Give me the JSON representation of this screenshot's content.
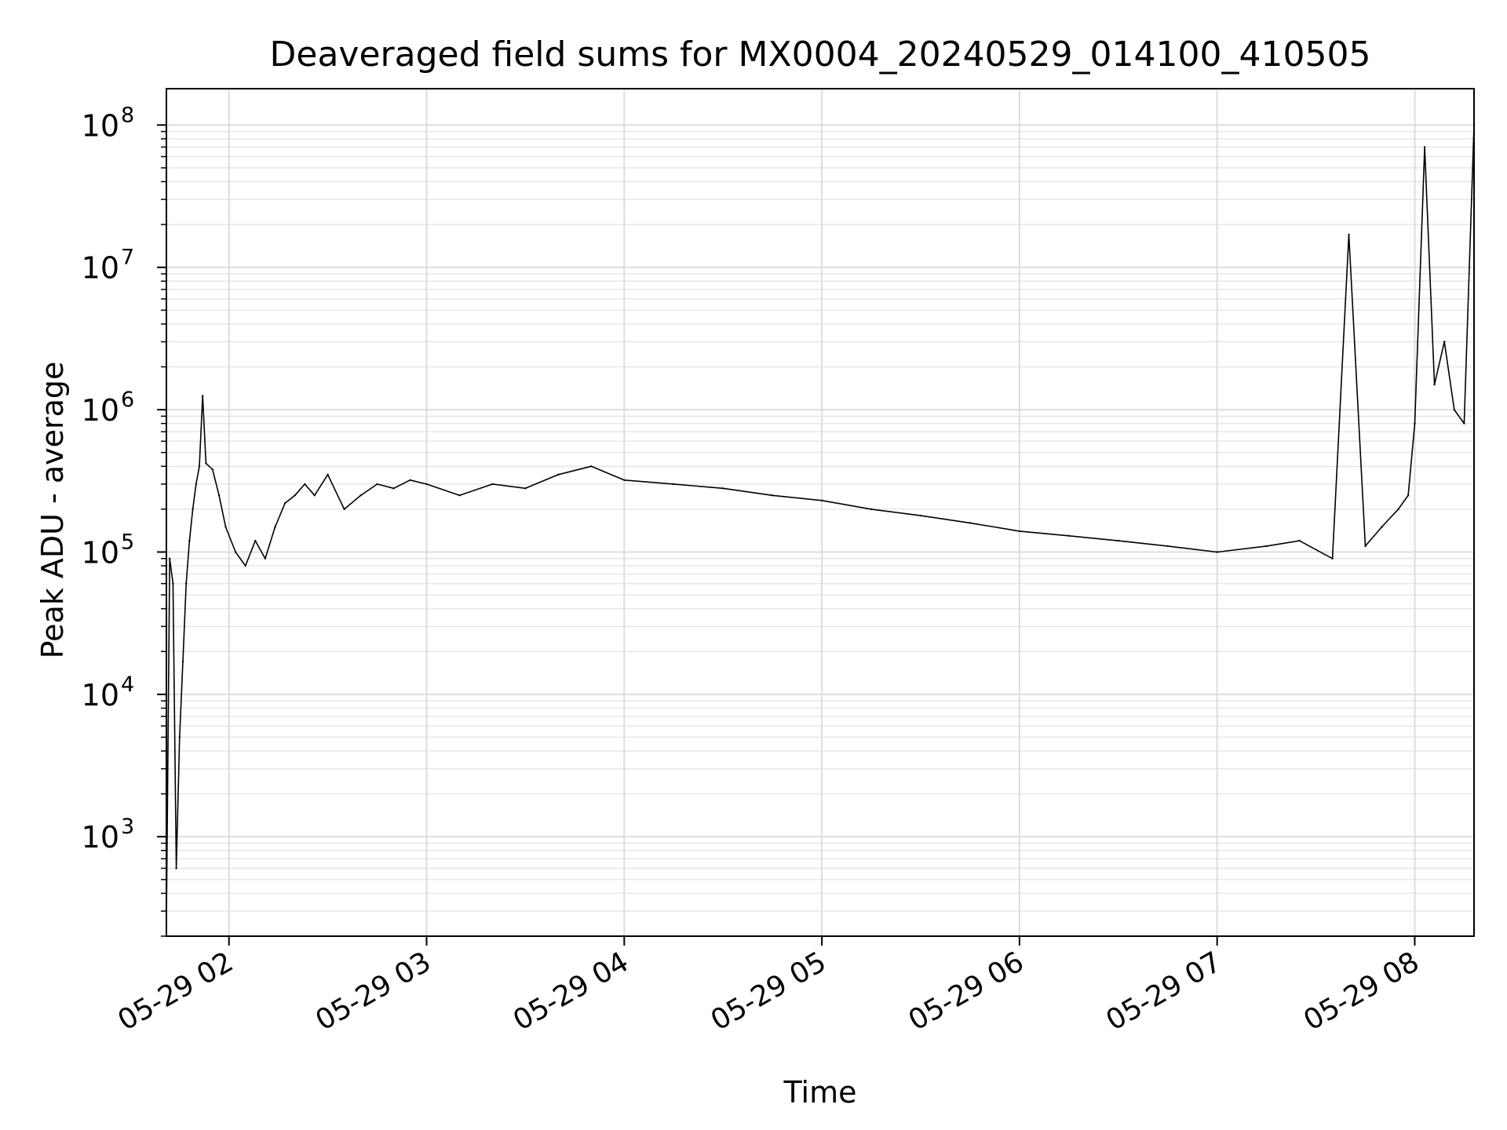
{
  "chart_data": {
    "type": "line",
    "title": "Deaveraged field sums for MX0004_20240529_014100_410505",
    "xlabel": "Time",
    "ylabel": "Peak ADU - average",
    "y_scale": "log",
    "grid": true,
    "x_range": [
      "05-29 01:41",
      "05-29 08:18"
    ],
    "ylim": [
      200,
      180000000
    ],
    "x_ticks": [
      "05-29 02",
      "05-29 03",
      "05-29 04",
      "05-29 05",
      "05-29 06",
      "05-29 07",
      "05-29 08"
    ],
    "y_ticks": [
      {
        "value": 1000,
        "base": "10",
        "exp": "3"
      },
      {
        "value": 10000,
        "base": "10",
        "exp": "4"
      },
      {
        "value": 100000,
        "base": "10",
        "exp": "5"
      },
      {
        "value": 1000000,
        "base": "10",
        "exp": "6"
      },
      {
        "value": 10000000,
        "base": "10",
        "exp": "7"
      },
      {
        "value": 100000000,
        "base": "10",
        "exp": "8"
      }
    ],
    "series": [
      {
        "color": "#000000",
        "x": [
          "05-29 01:41",
          "05-29 01:42",
          "05-29 01:43",
          "05-29 01:44",
          "05-29 01:45",
          "05-29 01:46",
          "05-29 01:47",
          "05-29 01:48",
          "05-29 01:49",
          "05-29 01:50",
          "05-29 01:51",
          "05-29 01:52",
          "05-29 01:53",
          "05-29 01:55",
          "05-29 01:57",
          "05-29 01:59",
          "05-29 02:02",
          "05-29 02:05",
          "05-29 02:08",
          "05-29 02:11",
          "05-29 02:14",
          "05-29 02:17",
          "05-29 02:20",
          "05-29 02:23",
          "05-29 02:26",
          "05-29 02:30",
          "05-29 02:35",
          "05-29 02:40",
          "05-29 02:45",
          "05-29 02:50",
          "05-29 02:55",
          "05-29 03:00",
          "05-29 03:10",
          "05-29 03:20",
          "05-29 03:30",
          "05-29 03:40",
          "05-29 03:50",
          "05-29 04:00",
          "05-29 04:15",
          "05-29 04:30",
          "05-29 04:45",
          "05-29 05:00",
          "05-29 05:15",
          "05-29 05:30",
          "05-29 05:45",
          "05-29 06:00",
          "05-29 06:15",
          "05-29 06:30",
          "05-29 06:45",
          "05-29 07:00",
          "05-29 07:15",
          "05-29 07:25",
          "05-29 07:35",
          "05-29 07:40",
          "05-29 07:45",
          "05-29 07:50",
          "05-29 07:55",
          "05-29 07:58",
          "05-29 08:00",
          "05-29 08:03",
          "05-29 08:06",
          "05-29 08:09",
          "05-29 08:12",
          "05-29 08:15",
          "05-29 08:18"
        ],
        "y": [
          250,
          90000,
          60000,
          600,
          5000,
          17000,
          60000,
          120000,
          200000,
          300000,
          400000,
          1250000,
          420000,
          380000,
          250000,
          150000,
          100000,
          80000,
          120000,
          90000,
          150000,
          220000,
          250000,
          300000,
          250000,
          350000,
          200000,
          250000,
          300000,
          280000,
          320000,
          300000,
          250000,
          300000,
          280000,
          350000,
          400000,
          320000,
          300000,
          280000,
          250000,
          230000,
          200000,
          180000,
          160000,
          140000,
          130000,
          120000,
          110000,
          100000,
          110000,
          120000,
          90000,
          17000000,
          110000,
          150000,
          200000,
          250000,
          800000,
          70000000,
          1500000,
          3000000,
          1000000,
          800000,
          100000000
        ]
      }
    ]
  }
}
